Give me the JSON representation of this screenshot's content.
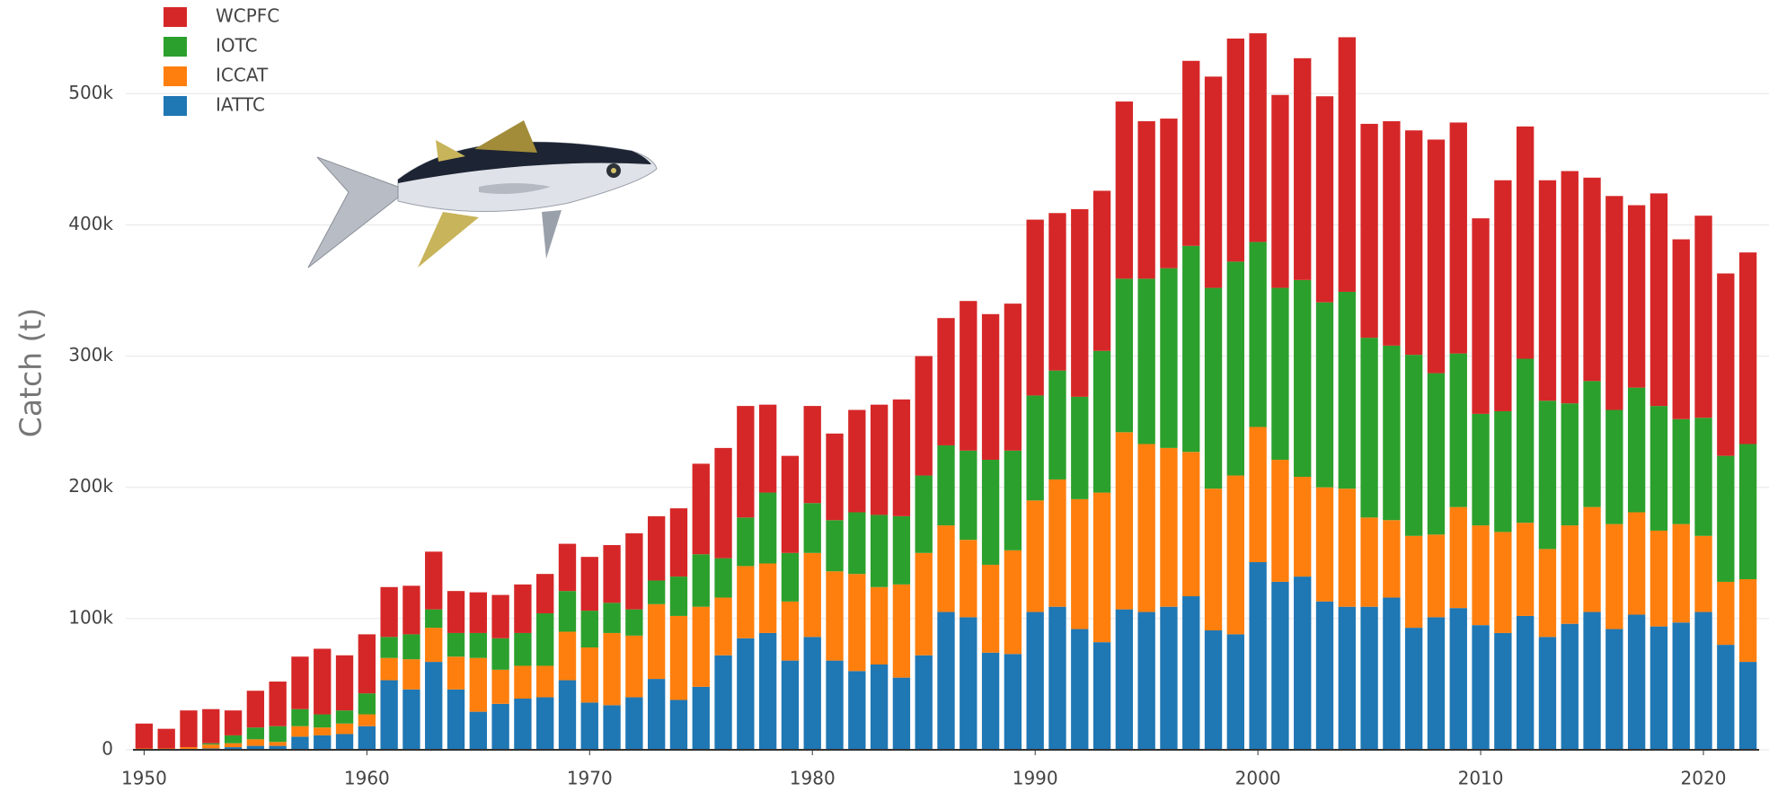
{
  "chart_data": {
    "type": "stacked_bar",
    "y_label": "Catch (t)",
    "x": [
      1950,
      1951,
      1952,
      1953,
      1954,
      1955,
      1956,
      1957,
      1958,
      1959,
      1960,
      1961,
      1962,
      1963,
      1964,
      1965,
      1966,
      1967,
      1968,
      1969,
      1970,
      1971,
      1972,
      1973,
      1974,
      1975,
      1976,
      1977,
      1978,
      1979,
      1980,
      1981,
      1982,
      1983,
      1984,
      1985,
      1986,
      1987,
      1988,
      1989,
      1990,
      1991,
      1992,
      1993,
      1994,
      1995,
      1996,
      1997,
      1998,
      1999,
      2000,
      2001,
      2002,
      2003,
      2004,
      2005,
      2006,
      2007,
      2008,
      2009,
      2010,
      2011,
      2012,
      2013,
      2014,
      2015,
      2016,
      2017,
      2018,
      2019,
      2020,
      2021,
      2022
    ],
    "xlim": [
      1949.5,
      2022.5
    ],
    "xticks": [
      1950,
      1960,
      1970,
      1980,
      1990,
      2000,
      2010,
      2020
    ],
    "ylim": [
      0,
      570000
    ],
    "yticks": [
      0,
      {
        "value": 100000,
        "label": "100k"
      },
      {
        "value": 200000,
        "label": "200k"
      },
      {
        "value": 300000,
        "label": "300k"
      },
      {
        "value": 400000,
        "label": "400k"
      },
      {
        "value": 500000,
        "label": "500k"
      }
    ],
    "grid": true,
    "legend": "top-left",
    "series": [
      {
        "name": "IATTC",
        "color": "#1f77b4",
        "values": [
          0,
          0,
          0,
          1000,
          2000,
          3000,
          3000,
          10000,
          11000,
          12000,
          18000,
          53000,
          46000,
          67000,
          46000,
          29000,
          35000,
          39000,
          40000,
          53000,
          36000,
          34000,
          40000,
          54000,
          38000,
          48000,
          72000,
          85000,
          89000,
          68000,
          86000,
          68000,
          60000,
          65000,
          55000,
          72000,
          105000,
          101000,
          74000,
          73000,
          105000,
          109000,
          92000,
          82000,
          107000,
          105000,
          109000,
          117000,
          91000,
          88000,
          143000,
          128000,
          132000,
          113000,
          109000,
          109000,
          116000,
          93000,
          101000,
          108000,
          95000,
          89000,
          102000,
          86000,
          96000,
          105000,
          92000,
          103000,
          94000,
          97000,
          105000,
          80000,
          67000
        ]
      },
      {
        "name": "ICCAT",
        "color": "#ff7f0e",
        "values": [
          1000,
          1000,
          2000,
          3000,
          3000,
          5000,
          3000,
          8000,
          6000,
          8000,
          9000,
          17000,
          23000,
          26000,
          25000,
          41000,
          26000,
          25000,
          24000,
          37000,
          42000,
          55000,
          47000,
          57000,
          64000,
          61000,
          44000,
          55000,
          53000,
          45000,
          64000,
          68000,
          74000,
          59000,
          71000,
          78000,
          66000,
          59000,
          67000,
          79000,
          85000,
          97000,
          99000,
          114000,
          135000,
          128000,
          121000,
          110000,
          108000,
          121000,
          103000,
          93000,
          76000,
          87000,
          90000,
          68000,
          59000,
          70000,
          63000,
          77000,
          76000,
          77000,
          71000,
          67000,
          75000,
          80000,
          80000,
          78000,
          73000,
          75000,
          58000,
          48000,
          63000
        ]
      },
      {
        "name": "IOTC",
        "color": "#2ca02c",
        "values": [
          0,
          0,
          0,
          1000,
          6000,
          9000,
          12000,
          13000,
          10000,
          10000,
          16000,
          16000,
          19000,
          14000,
          18000,
          19000,
          24000,
          25000,
          40000,
          31000,
          28000,
          23000,
          20000,
          18000,
          30000,
          40000,
          30000,
          37000,
          54000,
          37000,
          38000,
          39000,
          47000,
          55000,
          52000,
          59000,
          61000,
          68000,
          80000,
          76000,
          80000,
          83000,
          78000,
          108000,
          117000,
          126000,
          137000,
          157000,
          153000,
          163000,
          141000,
          131000,
          150000,
          141000,
          150000,
          137000,
          133000,
          138000,
          123000,
          117000,
          85000,
          92000,
          125000,
          113000,
          93000,
          96000,
          87000,
          95000,
          95000,
          80000,
          90000,
          96000,
          103000
        ]
      },
      {
        "name": "WCPFC",
        "color": "#d62728",
        "values": [
          19000,
          15000,
          28000,
          26000,
          19000,
          28000,
          34000,
          40000,
          50000,
          42000,
          45000,
          38000,
          37000,
          44000,
          32000,
          31000,
          33000,
          37000,
          30000,
          36000,
          41000,
          44000,
          58000,
          49000,
          52000,
          69000,
          84000,
          85000,
          67000,
          74000,
          74000,
          66000,
          78000,
          84000,
          89000,
          91000,
          97000,
          114000,
          111000,
          112000,
          134000,
          120000,
          143000,
          122000,
          135000,
          120000,
          114000,
          141000,
          161000,
          170000,
          159000,
          147000,
          169000,
          157000,
          194000,
          163000,
          171000,
          171000,
          178000,
          176000,
          149000,
          176000,
          177000,
          168000,
          177000,
          155000,
          163000,
          139000,
          162000,
          137000,
          154000,
          139000,
          146000
        ]
      }
    ]
  }
}
